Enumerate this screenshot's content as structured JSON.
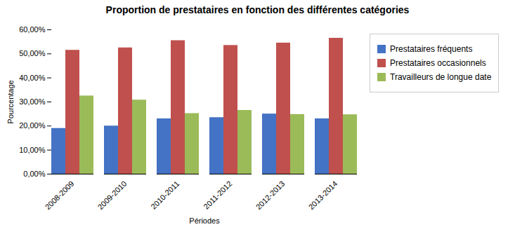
{
  "chart_data": {
    "type": "bar",
    "title": "Proportion de prestataires en fonction des différentes catégories",
    "xlabel": "Périodes",
    "ylabel": "Pourcentage",
    "categories": [
      "2008-2009",
      "2009-2010",
      "2010-2011",
      "2011-2012",
      "2012-2013",
      "2013-2014"
    ],
    "series": [
      {
        "name": "Prestataires fréquents",
        "color": "#4472C4",
        "values": [
          19.0,
          20.0,
          23.0,
          23.5,
          25.0,
          23.0
        ]
      },
      {
        "name": "Prestataires occasionnels",
        "color": "#C0504D",
        "values": [
          51.5,
          52.5,
          55.5,
          53.5,
          54.5,
          56.5
        ]
      },
      {
        "name": "Travailleurs de longue date",
        "color": "#9BBB59",
        "values": [
          32.5,
          30.8,
          25.2,
          26.5,
          24.8,
          24.7
        ]
      }
    ],
    "ylim": [
      0.0,
      60.0
    ],
    "yticks": [
      {
        "value": 0,
        "label": "0,00%"
      },
      {
        "value": 10,
        "label": "10,00%"
      },
      {
        "value": 20,
        "label": "20,00%"
      },
      {
        "value": 30,
        "label": "30,00%"
      },
      {
        "value": 40,
        "label": "40,00%"
      },
      {
        "value": 50,
        "label": "50,00%"
      },
      {
        "value": 60,
        "label": "60,00%"
      }
    ],
    "grid": false,
    "legend": "right"
  }
}
